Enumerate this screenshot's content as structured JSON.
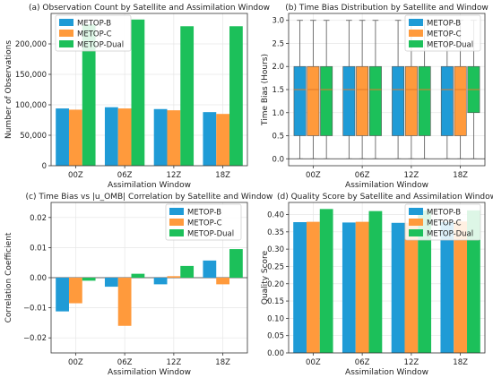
{
  "figure": {
    "background": "#ffffff"
  },
  "colors": {
    "METOP-B": "#1f9bd6",
    "METOP-C": "#ff9a3c",
    "METOP-Dual": "#1cc05a"
  },
  "chart_data": [
    {
      "id": "a",
      "type": "bar",
      "title": "(a) Observation Count by Satellite and Assimilation Window",
      "xlabel": "Assimilation Window",
      "ylabel": "Number of Observations",
      "categories": [
        "00Z",
        "06Z",
        "12Z",
        "18Z"
      ],
      "series": [
        {
          "name": "METOP-B",
          "values": [
            94000,
            96000,
            93000,
            88000
          ]
        },
        {
          "name": "METOP-C",
          "values": [
            92000,
            94000,
            91000,
            85000
          ]
        },
        {
          "name": "METOP-Dual",
          "values": [
            232000,
            240000,
            229000,
            229000
          ]
        }
      ],
      "ylim": [
        0,
        250000
      ],
      "yticks": [
        0,
        50000,
        100000,
        150000,
        200000
      ],
      "ytick_labels": [
        "0",
        "50,000",
        "100,000",
        "150,000",
        "200,000"
      ],
      "grid": true,
      "legend": "top-left"
    },
    {
      "id": "b",
      "type": "box",
      "title": "(b) Time Bias Distribution by Satellite and Window",
      "xlabel": "Assimilation Window",
      "ylabel": "Time Bias (Hours)",
      "categories": [
        "00Z",
        "06Z",
        "12Z",
        "18Z"
      ],
      "series": [
        {
          "name": "METOP-B",
          "boxes": [
            {
              "min": 0,
              "q1": 0.5,
              "median": 1.5,
              "q3": 2.0,
              "max": 3.0
            },
            {
              "min": 0,
              "q1": 0.5,
              "median": 1.5,
              "q3": 2.0,
              "max": 3.0
            },
            {
              "min": 0,
              "q1": 0.5,
              "median": 1.5,
              "q3": 2.0,
              "max": 3.0
            },
            {
              "min": 0,
              "q1": 0.5,
              "median": 1.5,
              "q3": 2.0,
              "max": 3.0
            }
          ]
        },
        {
          "name": "METOP-C",
          "boxes": [
            {
              "min": 0,
              "q1": 0.5,
              "median": 1.5,
              "q3": 2.0,
              "max": 3.0
            },
            {
              "min": 0,
              "q1": 0.5,
              "median": 1.5,
              "q3": 2.0,
              "max": 3.0
            },
            {
              "min": 0,
              "q1": 0.5,
              "median": 1.5,
              "q3": 2.0,
              "max": 3.0
            },
            {
              "min": 0,
              "q1": 0.5,
              "median": 1.5,
              "q3": 2.0,
              "max": 3.0
            }
          ]
        },
        {
          "name": "METOP-Dual",
          "boxes": [
            {
              "min": 0,
              "q1": 0.5,
              "median": 1.5,
              "q3": 2.0,
              "max": 3.0
            },
            {
              "min": 0,
              "q1": 0.5,
              "median": 1.5,
              "q3": 2.0,
              "max": 3.0
            },
            {
              "min": 0,
              "q1": 0.5,
              "median": 1.5,
              "q3": 2.0,
              "max": 3.0
            },
            {
              "min": 0,
              "q1": 1.0,
              "median": 1.5,
              "q3": 2.0,
              "max": 3.0
            }
          ]
        }
      ],
      "ylim": [
        -0.15,
        3.15
      ],
      "yticks": [
        0.0,
        0.5,
        1.0,
        1.5,
        2.0,
        2.5,
        3.0
      ],
      "ytick_labels": [
        "0.0",
        "0.5",
        "1.0",
        "1.5",
        "2.0",
        "2.5",
        "3.0"
      ],
      "grid": true,
      "legend": "top-right"
    },
    {
      "id": "c",
      "type": "bar",
      "title": "(c) Time Bias vs |u_OMB| Correlation by Satellite and Window",
      "xlabel": "Assimilation Window",
      "ylabel": "Correlation Coefficient",
      "categories": [
        "00Z",
        "06Z",
        "12Z",
        "18Z"
      ],
      "series": [
        {
          "name": "METOP-B",
          "values": [
            -0.0112,
            -0.003,
            -0.0022,
            0.0057
          ]
        },
        {
          "name": "METOP-C",
          "values": [
            -0.0085,
            -0.016,
            0.0005,
            -0.0022
          ]
        },
        {
          "name": "METOP-Dual",
          "values": [
            -0.001,
            0.0013,
            0.0039,
            0.0095
          ]
        }
      ],
      "ylim": [
        -0.025,
        0.025
      ],
      "yticks": [
        -0.02,
        -0.01,
        0.0,
        0.01,
        0.02
      ],
      "ytick_labels": [
        "−0.02",
        "−0.01",
        "0.00",
        "0.01",
        "0.02"
      ],
      "grid": true,
      "legend": "top-right"
    },
    {
      "id": "d",
      "type": "bar",
      "title": "(d) Quality Score by Satellite and Assimilation Window",
      "xlabel": "Assimilation Window",
      "ylabel": "Quality Score",
      "categories": [
        "00Z",
        "06Z",
        "12Z",
        "18Z"
      ],
      "series": [
        {
          "name": "METOP-B",
          "values": [
            0.378,
            0.377,
            0.376,
            0.378
          ]
        },
        {
          "name": "METOP-C",
          "values": [
            0.379,
            0.379,
            0.376,
            0.38
          ]
        },
        {
          "name": "METOP-Dual",
          "values": [
            0.416,
            0.41,
            0.412,
            0.412
          ]
        }
      ],
      "ylim": [
        0,
        0.435
      ],
      "yticks": [
        0.0,
        0.05,
        0.1,
        0.15,
        0.2,
        0.25,
        0.3,
        0.35,
        0.4
      ],
      "ytick_labels": [
        "0.00",
        "0.05",
        "0.10",
        "0.15",
        "0.20",
        "0.25",
        "0.30",
        "0.35",
        "0.40"
      ],
      "grid": true,
      "legend": "top-right"
    }
  ]
}
